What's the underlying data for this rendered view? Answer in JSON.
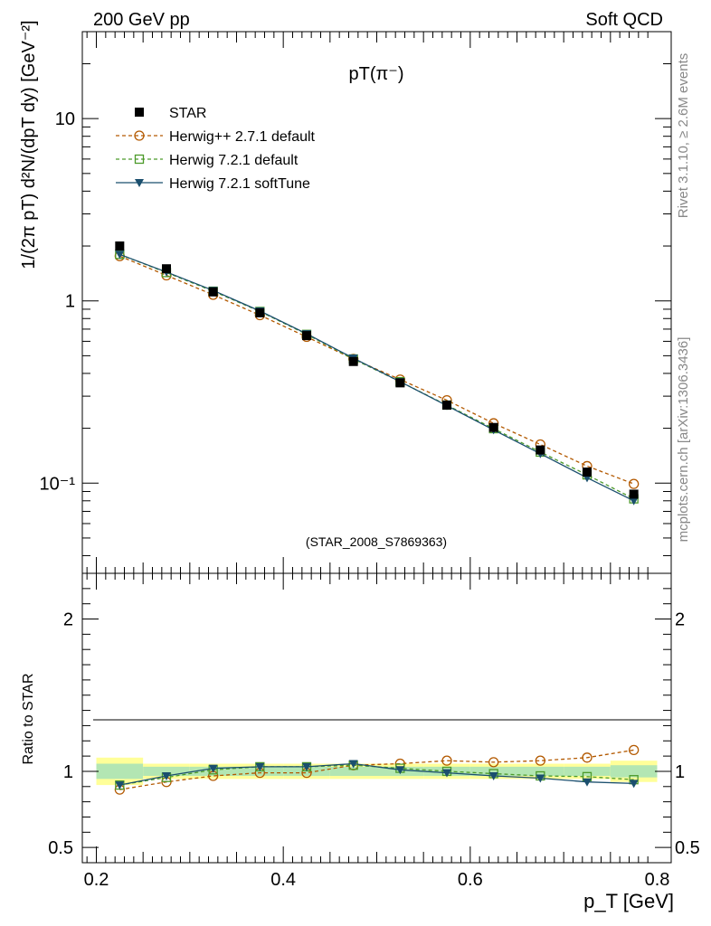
{
  "header": {
    "left": "200 GeV pp",
    "right": "Soft QCD"
  },
  "side_text": {
    "rivet": "Rivet 3.1.10, ≥ 2.6M events",
    "site": "mcplots.cern.ch [arXiv:1306.3436]"
  },
  "colors": {
    "star": "#000000",
    "herwigpp": "#b35900",
    "herwig721": "#4c9a2a",
    "softtune": "#1b4f6e",
    "band_yellow": "#ffff99",
    "band_green": "#b3e6b3"
  },
  "chart_data": [
    {
      "type": "line",
      "title": "pT(π⁻)",
      "ylabel": "1/(2π pT) d²N/(dpT dy) [GeV⁻²]",
      "xlabel": "",
      "yscale": "log",
      "xlim": [
        0.185,
        0.815
      ],
      "ylim": [
        0.032,
        30
      ],
      "ytick_labels": [
        "10⁻¹",
        "1",
        "10"
      ],
      "watermark": "(STAR_2008_S7869363)",
      "legend_position": "top-left",
      "x": [
        0.225,
        0.275,
        0.325,
        0.375,
        0.425,
        0.475,
        0.525,
        0.575,
        0.625,
        0.675,
        0.725,
        0.775
      ],
      "series": [
        {
          "name": "STAR",
          "style": "marker-square",
          "values": [
            2.0,
            1.5,
            1.12,
            0.86,
            0.645,
            0.465,
            0.355,
            0.268,
            0.202,
            0.152,
            0.115,
            0.087
          ]
        },
        {
          "name": "Herwig++ 2.7.1 default",
          "style": "dashed-open-circle",
          "values": [
            1.76,
            1.38,
            1.08,
            0.835,
            0.635,
            0.48,
            0.37,
            0.285,
            0.213,
            0.163,
            0.124,
            0.099
          ]
        },
        {
          "name": "Herwig 7.2.1 default",
          "style": "dashed-open-square",
          "values": [
            1.8,
            1.43,
            1.13,
            0.875,
            0.655,
            0.48,
            0.36,
            0.268,
            0.199,
            0.148,
            0.111,
            0.082
          ]
        },
        {
          "name": "Herwig 7.2.1 softTune",
          "style": "solid-triangle-down",
          "values": [
            1.8,
            1.44,
            1.14,
            0.88,
            0.66,
            0.485,
            0.36,
            0.266,
            0.196,
            0.145,
            0.107,
            0.08
          ]
        }
      ]
    },
    {
      "type": "line",
      "ylabel": "Ratio to STAR",
      "xlabel": "p_T [GeV]",
      "ylim": [
        0.4,
        2.3
      ],
      "xtick_labels": [
        "0.2",
        "0.4",
        "0.6",
        "0.8"
      ],
      "ytick_labels": [
        "0.5",
        "1",
        "2"
      ],
      "x": [
        0.225,
        0.275,
        0.325,
        0.375,
        0.425,
        0.475,
        0.525,
        0.575,
        0.625,
        0.675,
        0.725,
        0.775
      ],
      "band_yellow": [
        0.09,
        0.05,
        0.05,
        0.05,
        0.05,
        0.05,
        0.05,
        0.05,
        0.05,
        0.05,
        0.05,
        0.07
      ],
      "band_green": [
        0.05,
        0.03,
        0.03,
        0.03,
        0.03,
        0.03,
        0.03,
        0.03,
        0.03,
        0.03,
        0.03,
        0.04
      ],
      "series": [
        {
          "name": "Herwig++ 2.7.1 default",
          "style": "dashed-open-circle",
          "values": [
            0.88,
            0.93,
            0.97,
            0.99,
            0.99,
            1.04,
            1.05,
            1.07,
            1.06,
            1.07,
            1.09,
            1.14
          ]
        },
        {
          "name": "Herwig 7.2.1 default",
          "style": "dashed-open-square",
          "values": [
            0.91,
            0.96,
            1.01,
            1.03,
            1.03,
            1.04,
            1.02,
            1.0,
            0.985,
            0.97,
            0.965,
            0.945
          ]
        },
        {
          "name": "Herwig 7.2.1 softTune",
          "style": "solid-triangle-down",
          "values": [
            0.91,
            0.97,
            1.02,
            1.03,
            1.03,
            1.05,
            1.01,
            0.99,
            0.97,
            0.955,
            0.93,
            0.92
          ]
        }
      ]
    }
  ]
}
